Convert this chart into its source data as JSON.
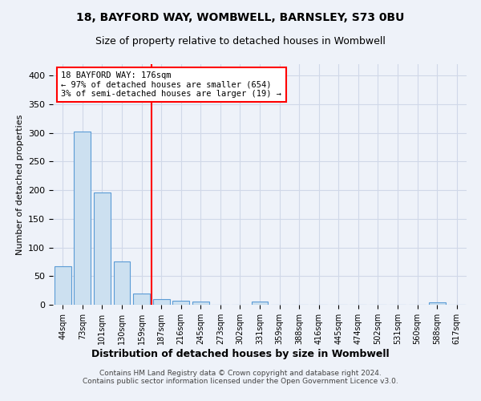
{
  "title1": "18, BAYFORD WAY, WOMBWELL, BARNSLEY, S73 0BU",
  "title2": "Size of property relative to detached houses in Wombwell",
  "xlabel": "Distribution of detached houses by size in Wombwell",
  "ylabel": "Number of detached properties",
  "footer1": "Contains HM Land Registry data © Crown copyright and database right 2024.",
  "footer2": "Contains public sector information licensed under the Open Government Licence v3.0.",
  "bin_labels": [
    "44sqm",
    "73sqm",
    "101sqm",
    "130sqm",
    "159sqm",
    "187sqm",
    "216sqm",
    "245sqm",
    "273sqm",
    "302sqm",
    "331sqm",
    "359sqm",
    "388sqm",
    "416sqm",
    "445sqm",
    "474sqm",
    "502sqm",
    "531sqm",
    "560sqm",
    "588sqm",
    "617sqm"
  ],
  "bin_values": [
    67,
    302,
    196,
    75,
    20,
    10,
    7,
    5,
    0,
    0,
    5,
    0,
    0,
    0,
    0,
    0,
    0,
    0,
    0,
    4,
    0
  ],
  "bar_color": "#cce0f0",
  "bar_edge_color": "#5b9bd5",
  "grid_color": "#d0d8e8",
  "property_line_bin": 5,
  "property_line_color": "red",
  "annotation_text": "18 BAYFORD WAY: 176sqm\n← 97% of detached houses are smaller (654)\n3% of semi-detached houses are larger (19) →",
  "annotation_box_color": "white",
  "annotation_box_edge_color": "red",
  "ylim": [
    0,
    420
  ],
  "yticks": [
    0,
    50,
    100,
    150,
    200,
    250,
    300,
    350,
    400
  ],
  "background_color": "#eef2f9"
}
